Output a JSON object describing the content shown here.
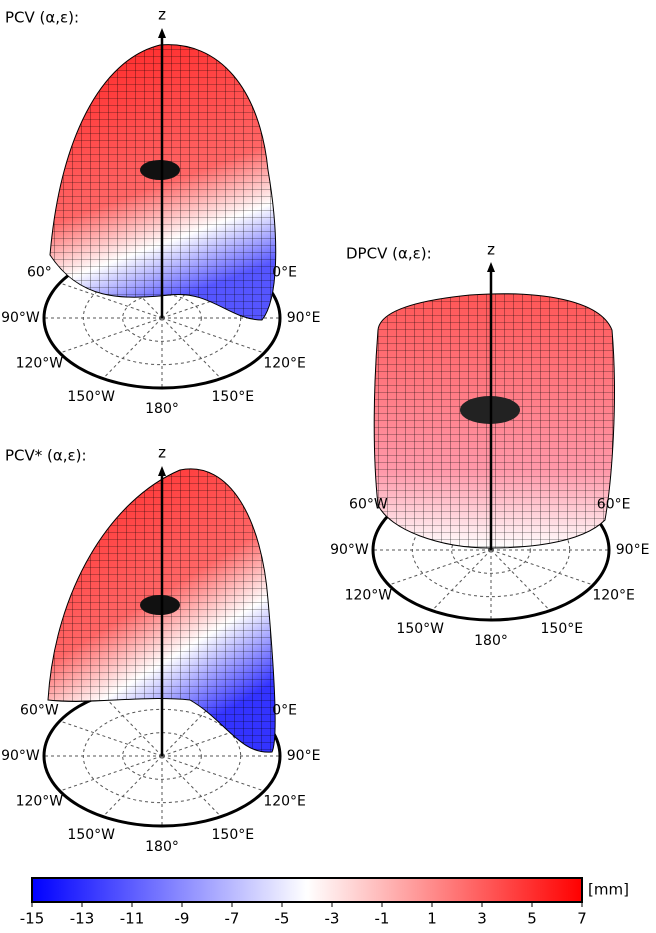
{
  "panels": [
    {
      "title": "PCV (α,ε):",
      "axis_label": "z",
      "azimuth_labels": [
        "60°",
        "90°W",
        "120°W",
        "150°W",
        "180°",
        "150°E",
        "120°E",
        "90°E",
        "0°E"
      ]
    },
    {
      "title": "DPCV (α,ε):",
      "axis_label": "z",
      "azimuth_labels": [
        "60°W",
        "90°W",
        "120°W",
        "150°W",
        "180°",
        "150°E",
        "120°E",
        "90°E",
        "60°E"
      ]
    },
    {
      "title": "PCV* (α,ε):",
      "axis_label": "z",
      "azimuth_labels": [
        "60°W",
        "90°W",
        "120°W",
        "150°W",
        "180°",
        "150°E",
        "120°E",
        "90°E",
        "0°E"
      ]
    }
  ],
  "colorbar": {
    "unit_label": "[mm]",
    "lim": [
      -15,
      7
    ],
    "ticks": [
      -15,
      -13,
      -11,
      -9,
      -7,
      -5,
      -3,
      -1,
      1,
      3,
      5,
      7
    ],
    "colors": [
      "#0000ff",
      "#ffffff",
      "#ff0000"
    ]
  }
}
